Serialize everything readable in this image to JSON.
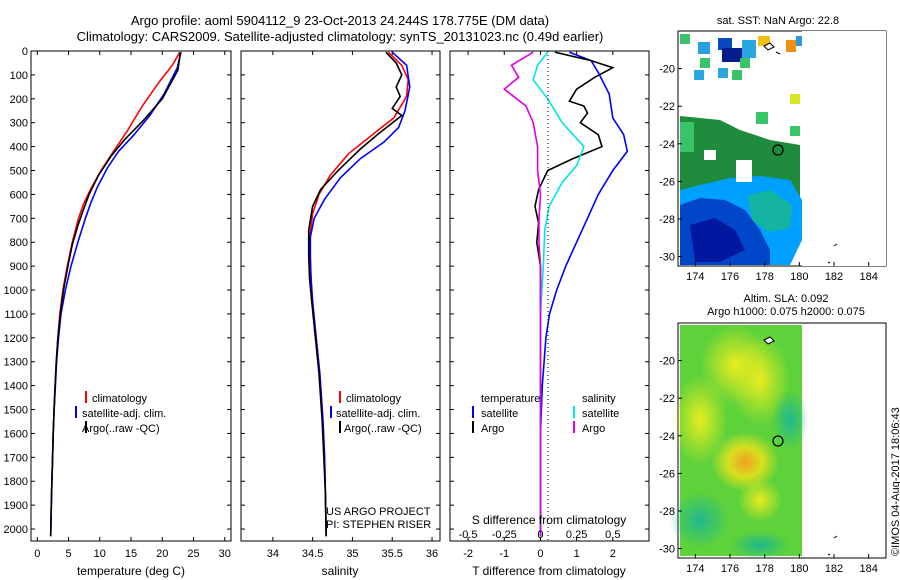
{
  "title_line1": "Argo profile: aoml 5904112_9 23-Oct-2013 24.244S 178.775E (DM data)",
  "title_line2": "Climatology: CARS2009. Satellite-adjusted climatology: synTS_20131023.nc (0.49d earlier)",
  "credit": "©IMOS 04-Aug-2017 18:06:43",
  "project": {
    "line1": "US ARGO PROJECT",
    "line2": "PI: STEPHEN RISER"
  },
  "colors": {
    "climatology": "#ff0000",
    "satellite": "#0000ff",
    "argo": "#000000",
    "sal_satellite": "#00e5e5",
    "sal_argo": "#e000e0"
  },
  "chart_data": [
    {
      "type": "line",
      "name": "temperature profile",
      "xlabel": "temperature (deg C)",
      "ylabel": "",
      "xlim": [
        -1,
        31
      ],
      "ylim": [
        2050,
        0
      ],
      "xticks": [
        0,
        5,
        10,
        15,
        20,
        25,
        30
      ],
      "yticks": [
        0,
        100,
        200,
        300,
        400,
        500,
        600,
        700,
        800,
        900,
        1000,
        1100,
        1200,
        1300,
        1400,
        1500,
        1600,
        1700,
        1800,
        1900,
        2000
      ],
      "legend": [
        "climatology",
        "satellite-adj. clim.",
        "Argo(..raw -QC)"
      ],
      "series": [
        {
          "name": "climatology",
          "color": "#ff0000",
          "points": [
            [
              22.8,
              5
            ],
            [
              21.6,
              60
            ],
            [
              19.5,
              130
            ],
            [
              16.8,
              230
            ],
            [
              14.5,
              330
            ],
            [
              12.2,
              420
            ],
            [
              10.2,
              500
            ],
            [
              8.5,
              580
            ],
            [
              7.4,
              640
            ],
            [
              6.6,
              700
            ],
            [
              5.6,
              800
            ],
            [
              4.8,
              900
            ],
            [
              4.1,
              1000
            ],
            [
              3.6,
              1100
            ],
            [
              3.3,
              1200
            ],
            [
              3.05,
              1300
            ],
            [
              2.85,
              1400
            ],
            [
              2.7,
              1500
            ],
            [
              2.55,
              1600
            ],
            [
              2.45,
              1700
            ],
            [
              2.35,
              1800
            ],
            [
              2.25,
              1900
            ],
            [
              2.15,
              2030
            ]
          ]
        },
        {
          "name": "satellite-adj. clim.",
          "color": "#0000ff",
          "points": [
            [
              23.0,
              5
            ],
            [
              22.4,
              70
            ],
            [
              20.3,
              180
            ],
            [
              18.0,
              270
            ],
            [
              15.5,
              350
            ],
            [
              13.0,
              420
            ],
            [
              11.2,
              490
            ],
            [
              9.6,
              570
            ],
            [
              8.5,
              640
            ],
            [
              7.7,
              700
            ],
            [
              6.5,
              800
            ],
            [
              5.4,
              900
            ],
            [
              4.5,
              1000
            ],
            [
              3.8,
              1100
            ],
            [
              3.4,
              1200
            ],
            [
              3.1,
              1300
            ],
            [
              2.9,
              1400
            ],
            [
              2.7,
              1500
            ],
            [
              2.55,
              1600
            ],
            [
              2.45,
              1700
            ],
            [
              2.35,
              1800
            ],
            [
              2.25,
              1900
            ],
            [
              2.15,
              2030
            ]
          ]
        },
        {
          "name": "Argo(..raw -QC)",
          "color": "#000000",
          "points": [
            [
              22.9,
              5
            ],
            [
              22.5,
              80
            ],
            [
              20.0,
              200
            ],
            [
              17.0,
              290
            ],
            [
              14.0,
              370
            ],
            [
              11.8,
              440
            ],
            [
              9.8,
              520
            ],
            [
              8.3,
              600
            ],
            [
              7.3,
              670
            ],
            [
              6.5,
              730
            ],
            [
              5.6,
              810
            ],
            [
              4.9,
              900
            ],
            [
              4.2,
              1000
            ],
            [
              3.7,
              1100
            ],
            [
              3.3,
              1200
            ],
            [
              3.05,
              1300
            ],
            [
              2.85,
              1400
            ],
            [
              2.7,
              1500
            ],
            [
              2.55,
              1600
            ],
            [
              2.45,
              1700
            ],
            [
              2.35,
              1800
            ],
            [
              2.25,
              1900
            ],
            [
              2.15,
              2030
            ]
          ]
        }
      ]
    },
    {
      "type": "line",
      "name": "salinity profile",
      "xlabel": "salinity",
      "xlim": [
        33.6,
        36.1
      ],
      "ylim": [
        2050,
        0
      ],
      "xticks": [
        34,
        34.5,
        35,
        35.5,
        36
      ],
      "legend": [
        "climatology",
        "satellite-adj. clim.",
        "Argo(..raw -QC)"
      ],
      "series": [
        {
          "name": "climatology",
          "color": "#ff0000",
          "points": [
            [
              35.45,
              5
            ],
            [
              35.62,
              60
            ],
            [
              35.7,
              120
            ],
            [
              35.68,
              190
            ],
            [
              35.52,
              280
            ],
            [
              35.25,
              350
            ],
            [
              34.95,
              430
            ],
            [
              34.72,
              520
            ],
            [
              34.58,
              600
            ],
            [
              34.5,
              680
            ],
            [
              34.47,
              760
            ],
            [
              34.47,
              850
            ],
            [
              34.48,
              950
            ],
            [
              34.5,
              1050
            ],
            [
              34.53,
              1150
            ],
            [
              34.56,
              1250
            ],
            [
              34.59,
              1350
            ],
            [
              34.61,
              1450
            ],
            [
              34.63,
              1550
            ],
            [
              34.65,
              1700
            ],
            [
              34.66,
              1850
            ],
            [
              34.67,
              2030
            ]
          ]
        },
        {
          "name": "satellite-adj. clim.",
          "color": "#0000ff",
          "points": [
            [
              35.5,
              5
            ],
            [
              35.68,
              60
            ],
            [
              35.72,
              150
            ],
            [
              35.66,
              250
            ],
            [
              35.58,
              320
            ],
            [
              35.4,
              380
            ],
            [
              35.1,
              450
            ],
            [
              34.85,
              530
            ],
            [
              34.65,
              620
            ],
            [
              34.52,
              700
            ],
            [
              34.47,
              780
            ],
            [
              34.47,
              870
            ],
            [
              34.48,
              950
            ],
            [
              34.5,
              1050
            ],
            [
              34.53,
              1150
            ],
            [
              34.56,
              1250
            ],
            [
              34.59,
              1350
            ],
            [
              34.61,
              1450
            ],
            [
              34.63,
              1550
            ],
            [
              34.65,
              1700
            ],
            [
              34.66,
              1850
            ],
            [
              34.67,
              2030
            ]
          ]
        },
        {
          "name": "Argo(..raw -QC)",
          "color": "#000000",
          "points": [
            [
              35.42,
              5
            ],
            [
              35.55,
              50
            ],
            [
              35.62,
              100
            ],
            [
              35.55,
              150
            ],
            [
              35.6,
              190
            ],
            [
              35.5,
              240
            ],
            [
              35.62,
              270
            ],
            [
              35.35,
              340
            ],
            [
              35.1,
              410
            ],
            [
              34.82,
              500
            ],
            [
              34.6,
              580
            ],
            [
              34.5,
              650
            ],
            [
              34.45,
              750
            ],
            [
              34.45,
              850
            ],
            [
              34.46,
              950
            ],
            [
              34.49,
              1050
            ],
            [
              34.52,
              1150
            ],
            [
              34.55,
              1250
            ],
            [
              34.58,
              1350
            ],
            [
              34.6,
              1450
            ],
            [
              34.62,
              1550
            ],
            [
              34.64,
              1700
            ],
            [
              34.66,
              1850
            ],
            [
              34.67,
              2030
            ]
          ]
        }
      ]
    },
    {
      "type": "line",
      "name": "difference from climatology",
      "xlabel": "T difference from climatology",
      "xlabel_top": "S difference from climatology",
      "xlim": [
        -2.5,
        3.0
      ],
      "ylim": [
        2050,
        0
      ],
      "xticks_T": [
        -2,
        -1,
        0,
        1,
        2
      ],
      "xticks_S": [
        -0.5,
        -0.25,
        0,
        0.25,
        0.5
      ],
      "legend_heading_T": "temperature",
      "legend_heading_S": "salinity",
      "legend_T": [
        "satellite",
        "Argo"
      ],
      "legend_S": [
        "satellite",
        "Argo"
      ],
      "series": [
        {
          "name": "T satellite",
          "color": "#0000ff",
          "points": [
            [
              0.8,
              5
            ],
            [
              1.4,
              40
            ],
            [
              1.6,
              90
            ],
            [
              1.9,
              180
            ],
            [
              2.0,
              280
            ],
            [
              2.3,
              350
            ],
            [
              2.4,
              420
            ],
            [
              2.0,
              500
            ],
            [
              1.6,
              600
            ],
            [
              1.3,
              700
            ],
            [
              1.0,
              800
            ],
            [
              0.7,
              900
            ],
            [
              0.45,
              1000
            ],
            [
              0.25,
              1100
            ],
            [
              0.15,
              1200
            ],
            [
              0.05,
              1400
            ],
            [
              0.0,
              1600
            ],
            [
              0.0,
              2030
            ]
          ]
        },
        {
          "name": "T Argo",
          "color": "#000000",
          "points": [
            [
              0.4,
              5
            ],
            [
              1.4,
              40
            ],
            [
              2.0,
              70
            ],
            [
              1.5,
              110
            ],
            [
              1.0,
              160
            ],
            [
              0.8,
              210
            ],
            [
              1.2,
              230
            ],
            [
              1.3,
              260
            ],
            [
              1.1,
              300
            ],
            [
              1.6,
              350
            ],
            [
              1.7,
              400
            ],
            [
              0.9,
              450
            ],
            [
              0.2,
              500
            ],
            [
              -0.05,
              580
            ],
            [
              -0.15,
              650
            ],
            [
              -0.05,
              720
            ],
            [
              -0.1,
              800
            ],
            [
              0.0,
              900
            ],
            [
              0.0,
              1000
            ],
            [
              0.0,
              1200
            ],
            [
              0.0,
              2030
            ]
          ]
        },
        {
          "name": "S satellite",
          "color": "#00e5e5",
          "points": [
            [
              0.05,
              5
            ],
            [
              -0.02,
              60
            ],
            [
              -0.05,
              120
            ],
            [
              0.05,
              200
            ],
            [
              0.15,
              300
            ],
            [
              0.3,
              400
            ],
            [
              0.25,
              480
            ],
            [
              0.15,
              550
            ],
            [
              0.06,
              650
            ],
            [
              0.03,
              750
            ],
            [
              0.02,
              900
            ],
            [
              0.0,
              1100
            ],
            [
              0.0,
              2030
            ]
          ]
        },
        {
          "name": "S Argo",
          "color": "#e000e0",
          "points": [
            [
              -0.05,
              5
            ],
            [
              -0.2,
              60
            ],
            [
              -0.15,
              110
            ],
            [
              -0.25,
              160
            ],
            [
              -0.1,
              230
            ],
            [
              -0.05,
              300
            ],
            [
              -0.02,
              400
            ],
            [
              -0.02,
              500
            ],
            [
              0.0,
              600
            ],
            [
              -0.01,
              700
            ],
            [
              -0.01,
              800
            ],
            [
              0.0,
              900
            ],
            [
              0.0,
              1000
            ],
            [
              0.0,
              2030
            ]
          ]
        }
      ]
    },
    {
      "type": "heatmap",
      "name": "satellite SST map",
      "title": "sat. SST: NaN Argo: 22.8",
      "xlim": [
        173,
        185
      ],
      "ylim": [
        -30.5,
        -18
      ],
      "xticks": [
        174,
        176,
        178,
        180,
        182,
        184
      ],
      "yticks": [
        -20,
        -22,
        -24,
        -26,
        -28,
        -30
      ],
      "argo_position": [
        178.775,
        -24.244
      ]
    },
    {
      "type": "heatmap",
      "name": "altimetry SLA map",
      "title_line1": "Altim. SLA: 0.092",
      "title_line2": "Argo h1000: 0.075 h2000: 0.075",
      "xlim": [
        173,
        185
      ],
      "ylim": [
        -30.5,
        -18
      ],
      "xticks": [
        174,
        176,
        178,
        180,
        182,
        184
      ],
      "yticks": [
        -20,
        -22,
        -24,
        -26,
        -28,
        -30
      ],
      "argo_position": [
        178.775,
        -24.244
      ]
    }
  ]
}
